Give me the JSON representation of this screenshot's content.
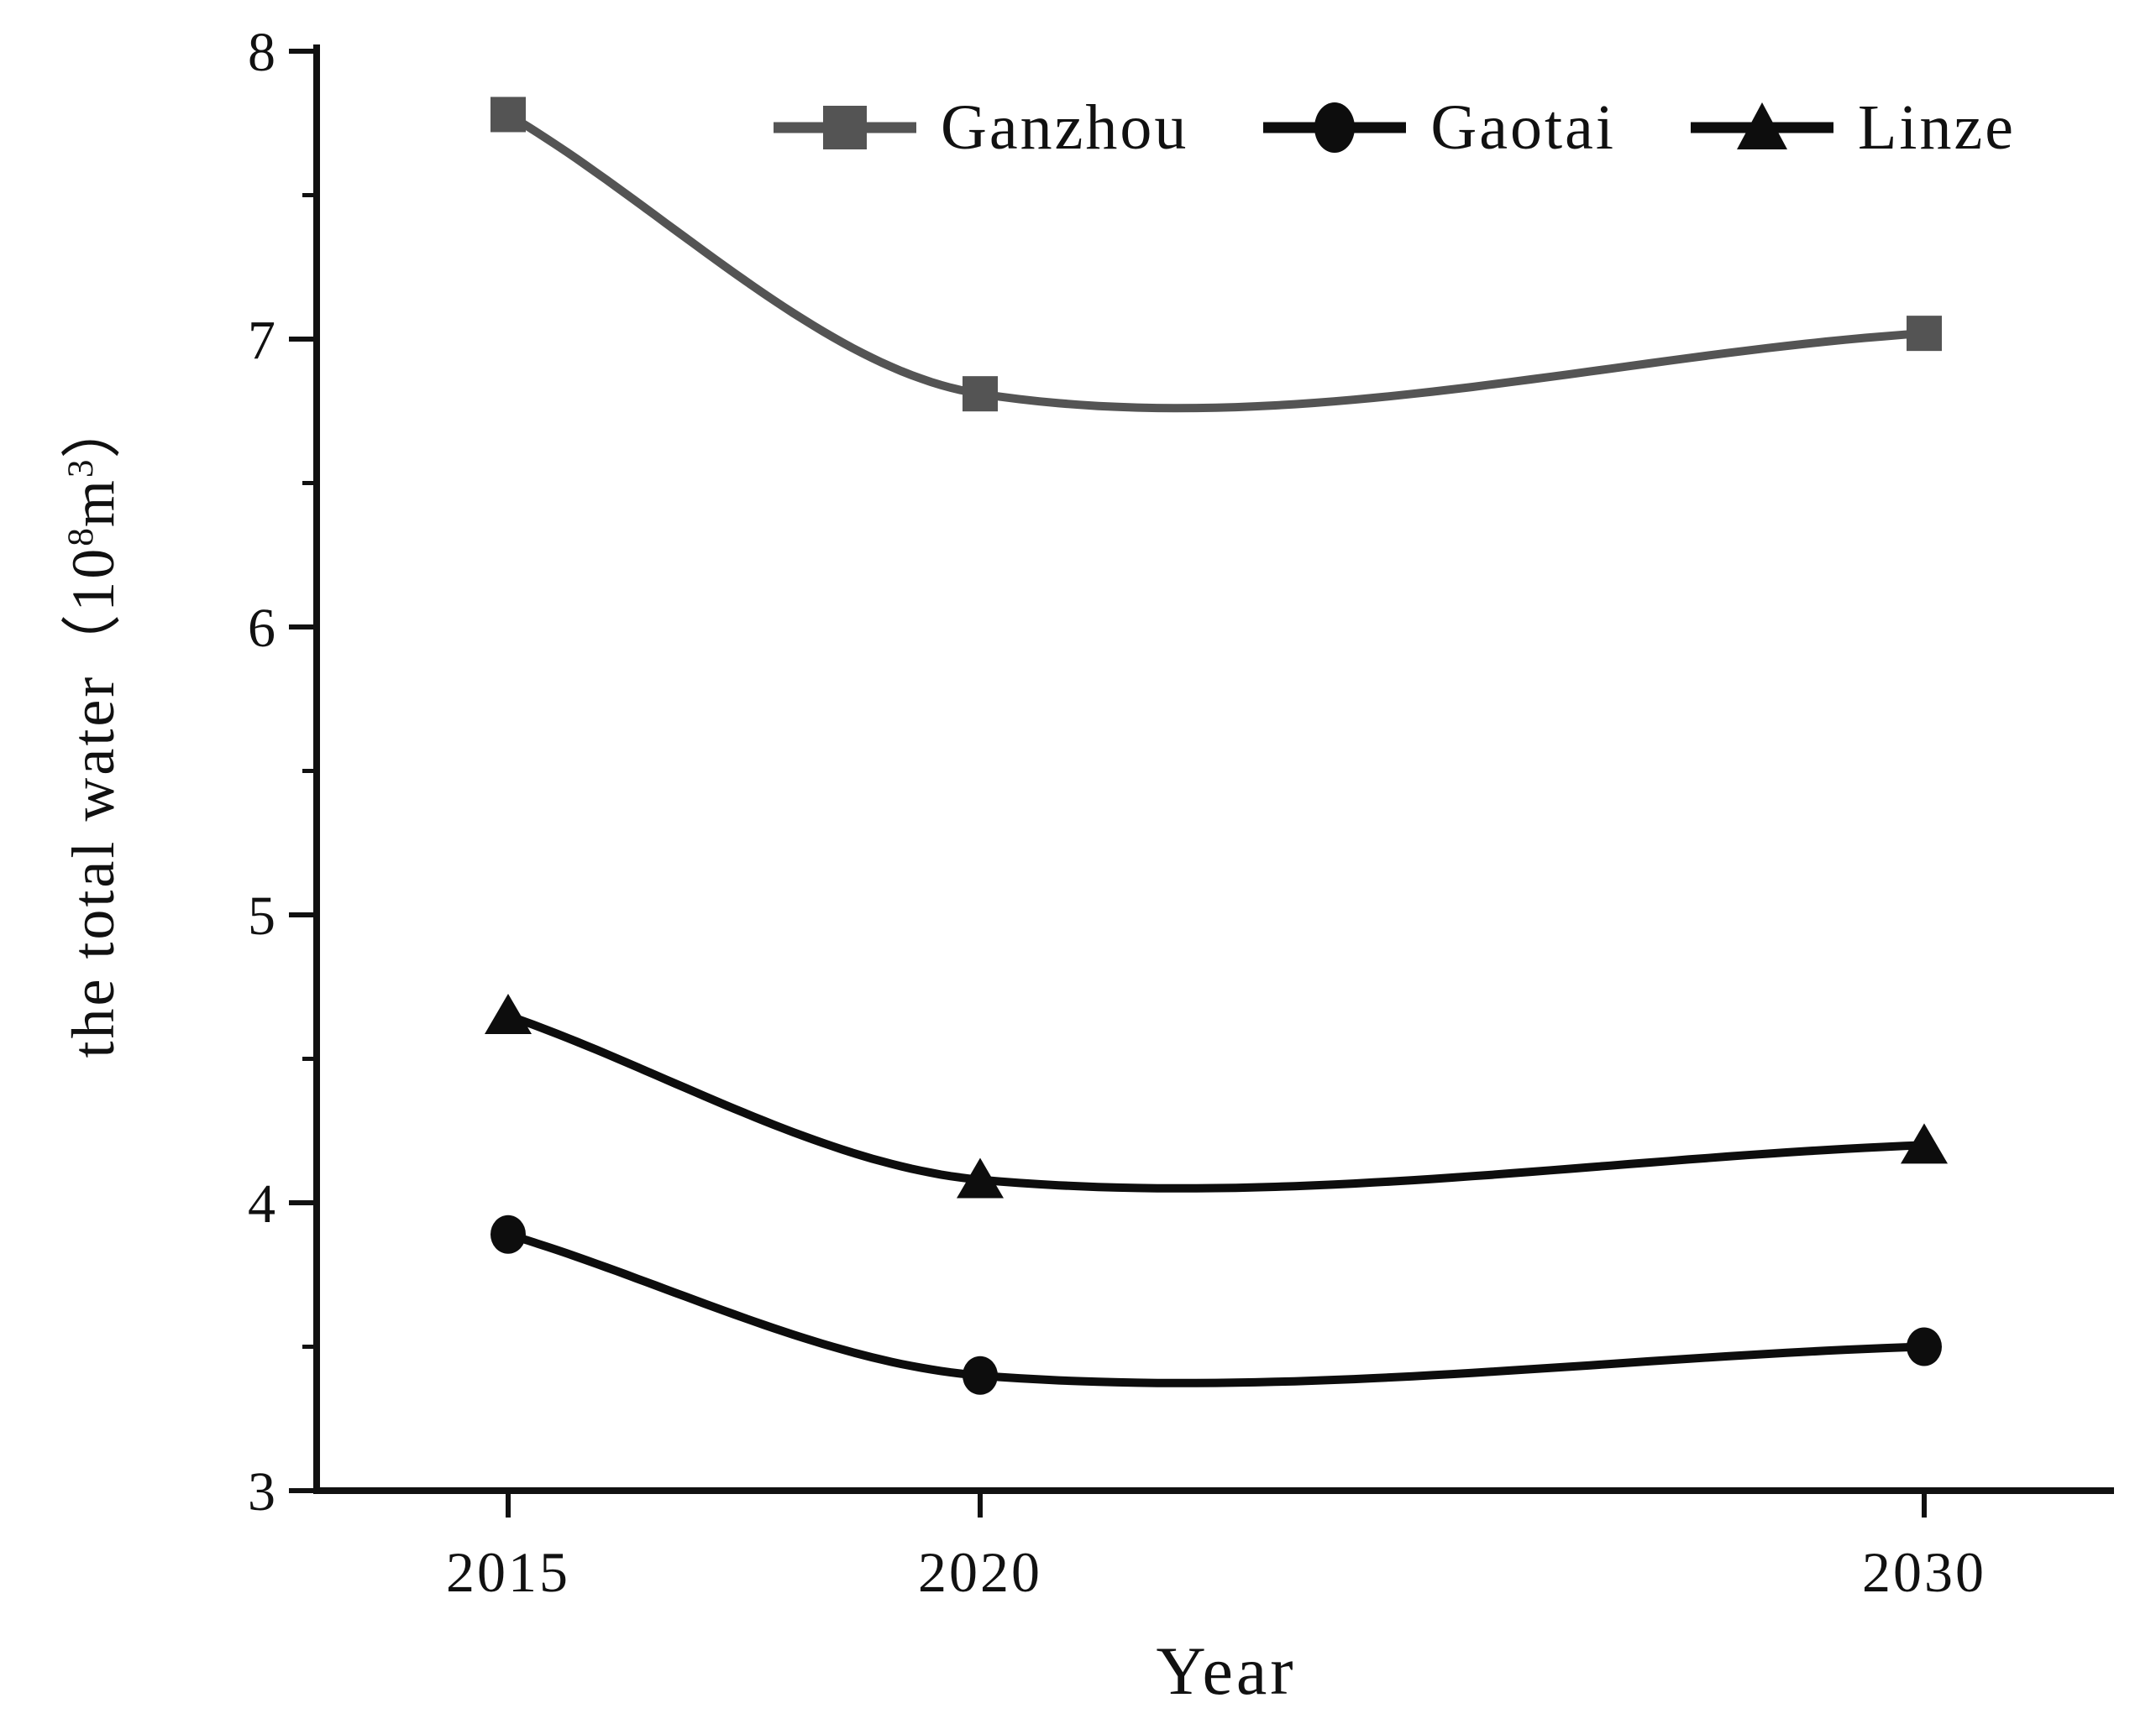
{
  "chart_data": {
    "type": "line",
    "title": "",
    "xlabel": "Year",
    "ylabel": "the total water（10⁸m³）",
    "ylabel_parts": {
      "pre": "the total water（10",
      "sup1": "8",
      "mid": "m",
      "sup2": "3",
      "post": "）"
    },
    "x_years": [
      2015,
      2020,
      2030
    ],
    "x_tick_labels": [
      "2015",
      "2020",
      "2030"
    ],
    "y_ticks": [
      3,
      4,
      5,
      6,
      7,
      8
    ],
    "y_tick_labels": [
      "3",
      "4",
      "5",
      "6",
      "7",
      "8"
    ],
    "y_minor_ticks": [
      3.5,
      4.5,
      5.5,
      6.5,
      7.5
    ],
    "ylim": [
      3,
      8
    ],
    "xlim_years": [
      2013,
      2032
    ],
    "grid": false,
    "legend_position": "top-center",
    "axis_color": "#111111",
    "series": [
      {
        "name": "Ganzhou",
        "marker": "square",
        "color": "#545454",
        "values": [
          7.78,
          6.81,
          7.02
        ]
      },
      {
        "name": "Gaotai",
        "marker": "circle",
        "color": "#0d0d0d",
        "values": [
          3.89,
          3.4,
          3.5
        ]
      },
      {
        "name": "Linze",
        "marker": "triangle",
        "color": "#0d0d0d",
        "values": [
          4.65,
          4.08,
          4.2
        ]
      }
    ]
  }
}
